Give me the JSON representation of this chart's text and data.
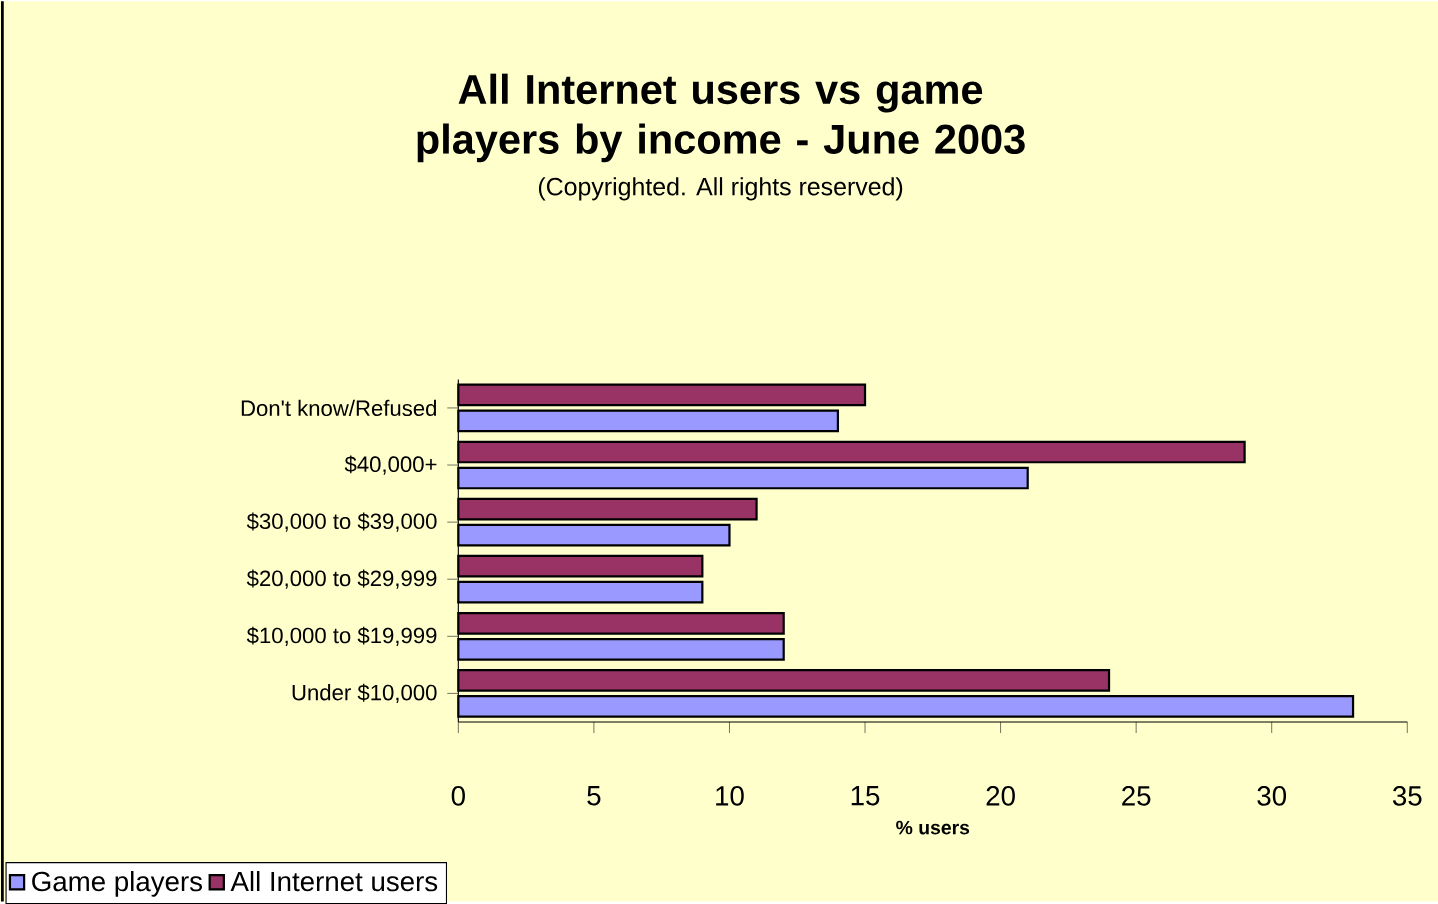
{
  "chart_data": {
    "type": "bar",
    "orientation": "horizontal",
    "title": "All Internet users vs game players by income - June 2003",
    "subtitle": "(Copyrighted. All rights reserved)",
    "xlabel": "% users",
    "categories": [
      "Don't know/Refused",
      "$40,000+",
      "$30,000 to $39,000",
      "$20,000 to $29,999",
      "$10,000 to $19,999",
      "Under $10,000"
    ],
    "series": [
      {
        "name": "Game players",
        "color": "#9999ff",
        "values": [
          14,
          21,
          10,
          9,
          12,
          33
        ]
      },
      {
        "name": "All Internet users",
        "color": "#993366",
        "values": [
          15,
          29,
          11,
          9,
          12,
          24
        ]
      }
    ],
    "xlim": [
      0,
      35
    ],
    "xticks": [
      0,
      5,
      10,
      15,
      20,
      25,
      30,
      35
    ],
    "grid": false,
    "legend": "bottom left"
  }
}
